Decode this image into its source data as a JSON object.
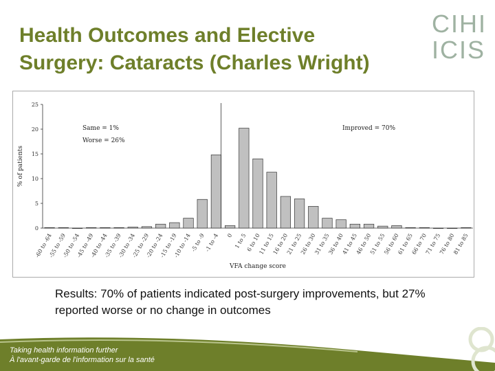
{
  "slide": {
    "title_line1": "Health Outcomes and Elective",
    "title_line2": "Surgery: Cataracts (Charles Wright)",
    "logo_top": "CIHI",
    "logo_bottom": "ICIS",
    "caption": "Results: 70% of patients indicated post-surgery improvements, but 27% reported worse or no change in outcomes",
    "footer_line1": "Taking health information further",
    "footer_line2": "À l'avant-garde de l'information sur la santé"
  },
  "colors": {
    "title": "#6e7f2a",
    "bar_fill": "#c0c0c0",
    "footer": "#6e7f2a",
    "logo": "#9fb2a2"
  },
  "chart_data": {
    "type": "bar",
    "xlabel": "VFA change score",
    "ylabel": "% of patients",
    "ylim": [
      0,
      25
    ],
    "yticks": [
      0,
      5,
      10,
      15,
      20,
      25
    ],
    "grid": false,
    "categories": [
      "-60 to -64",
      "-55 to -59",
      "-50 to -54",
      "-45 to -49",
      "-40 to -44",
      "-35 to -39",
      "-30 to -34",
      "-25 to -29",
      "-20 to -24",
      "-15 to -19",
      "-10 to -14",
      "-5 to -9",
      "-1 to -4",
      "0",
      "1 to 5",
      "6 to 10",
      "11 to 15",
      "16 to 20",
      "21 to 25",
      "26 to 30",
      "31 to 35",
      "36 to 40",
      "41 to 45",
      "46 to 50",
      "51 to 55",
      "56 to 60",
      "61 to 65",
      "66 to 70",
      "71 to 75",
      "76 to 80",
      "81 to 85"
    ],
    "values": [
      0.1,
      0.1,
      0,
      0.1,
      0.1,
      0.1,
      0.2,
      0.3,
      0.8,
      1.1,
      2.0,
      5.8,
      14.8,
      0.5,
      20.2,
      14.0,
      11.3,
      6.4,
      5.9,
      4.4,
      2.0,
      1.7,
      0.8,
      0.8,
      0.4,
      0.5,
      0.1,
      0.1,
      0,
      0,
      0.1
    ],
    "annotations": {
      "same": "Same = 1%",
      "worse": "Worse = 26%",
      "improved": "Improved = 70%"
    }
  }
}
